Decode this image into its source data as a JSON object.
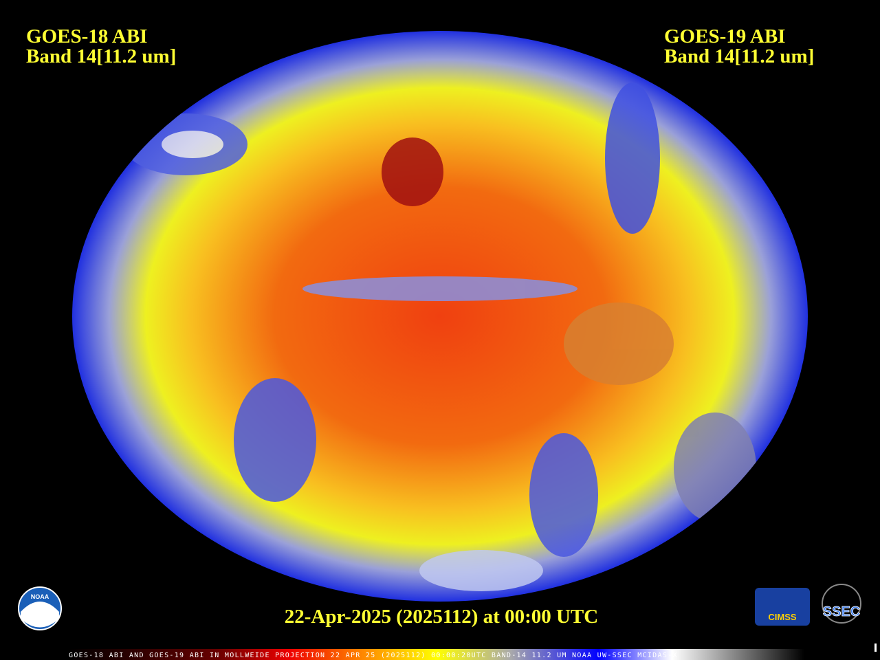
{
  "left_label": {
    "satellite": "GOES-18 ABI",
    "band": "Band 14[11.2 um]"
  },
  "right_label": {
    "satellite": "GOES-19 ABI",
    "band": "Band 14[11.2 um]"
  },
  "timestamp": "22-Apr-2025 (2025112) at 00:00 UTC",
  "footer": "GOES-18 ABI AND GOES-19 ABI IN MOLLWEIDE PROJECTION 22 APR 25 (2025112) 00:00:20UTC BAND-14 11.2 UM NOAA UW-SSEC MCIDAS-X",
  "logos": {
    "noaa": "NOAA",
    "cimss": "CIMSS",
    "ssec": "SSEC"
  }
}
